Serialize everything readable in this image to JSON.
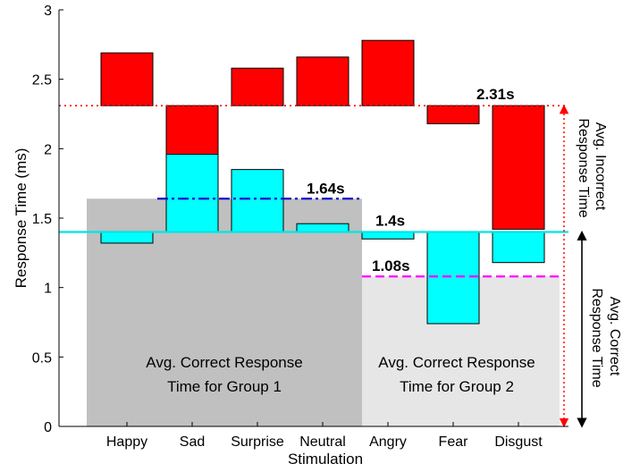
{
  "chart_data": {
    "type": "bar",
    "xlabel": "Stimulation",
    "ylabel": "Response Time (ms)",
    "ylim": [
      0,
      3
    ],
    "yticks": [
      "0",
      "0.5",
      "1",
      "1.5",
      "2",
      "2.5",
      "3"
    ],
    "categories": [
      "Happy",
      "Sad",
      "Surprise",
      "Neutral",
      "Angry",
      "Fear",
      "Disgust"
    ],
    "series": [
      {
        "role": "incorrect",
        "color": "#ff0000",
        "baseline": 2.31,
        "values": [
          2.69,
          1.92,
          2.58,
          2.66,
          2.78,
          2.18,
          1.42
        ]
      },
      {
        "role": "correct",
        "color": "#00ffff",
        "baseline": 1.4,
        "values": [
          1.32,
          1.96,
          1.85,
          1.46,
          1.35,
          0.74,
          1.18
        ]
      }
    ],
    "groups": [
      {
        "label_line1": "Avg. Correct Response",
        "label_line2": "Time for Group 1",
        "value": 1.64,
        "categories": [
          "Happy",
          "Sad",
          "Surprise",
          "Neutral"
        ],
        "color": "#c0c0c0"
      },
      {
        "label_line1": "Avg. Correct Response",
        "label_line2": "Time for Group 2",
        "value": 1.08,
        "categories": [
          "Angry",
          "Fear",
          "Disgust"
        ],
        "color": "#e6e6e6"
      }
    ],
    "reference_lines": [
      {
        "value": 2.31,
        "label": "2.31s",
        "style": "dotted",
        "color": "#ff0000"
      },
      {
        "value": 1.64,
        "label": "1.64s",
        "style": "dashdot",
        "color": "#1010c8"
      },
      {
        "value": 1.4,
        "label": "1.4s",
        "style": "solid",
        "color": "#00e5e5"
      },
      {
        "value": 1.08,
        "label": "1.08s",
        "style": "dashed",
        "color": "#ff00ff"
      }
    ],
    "side_annotations": {
      "incorrect": {
        "line1": "Avg. Incorrect",
        "line2": "Response Time",
        "color": "#ff0000"
      },
      "correct": {
        "line1": "Avg. Correct",
        "line2": "Response Time",
        "color": "#000000"
      }
    },
    "grid": false
  }
}
